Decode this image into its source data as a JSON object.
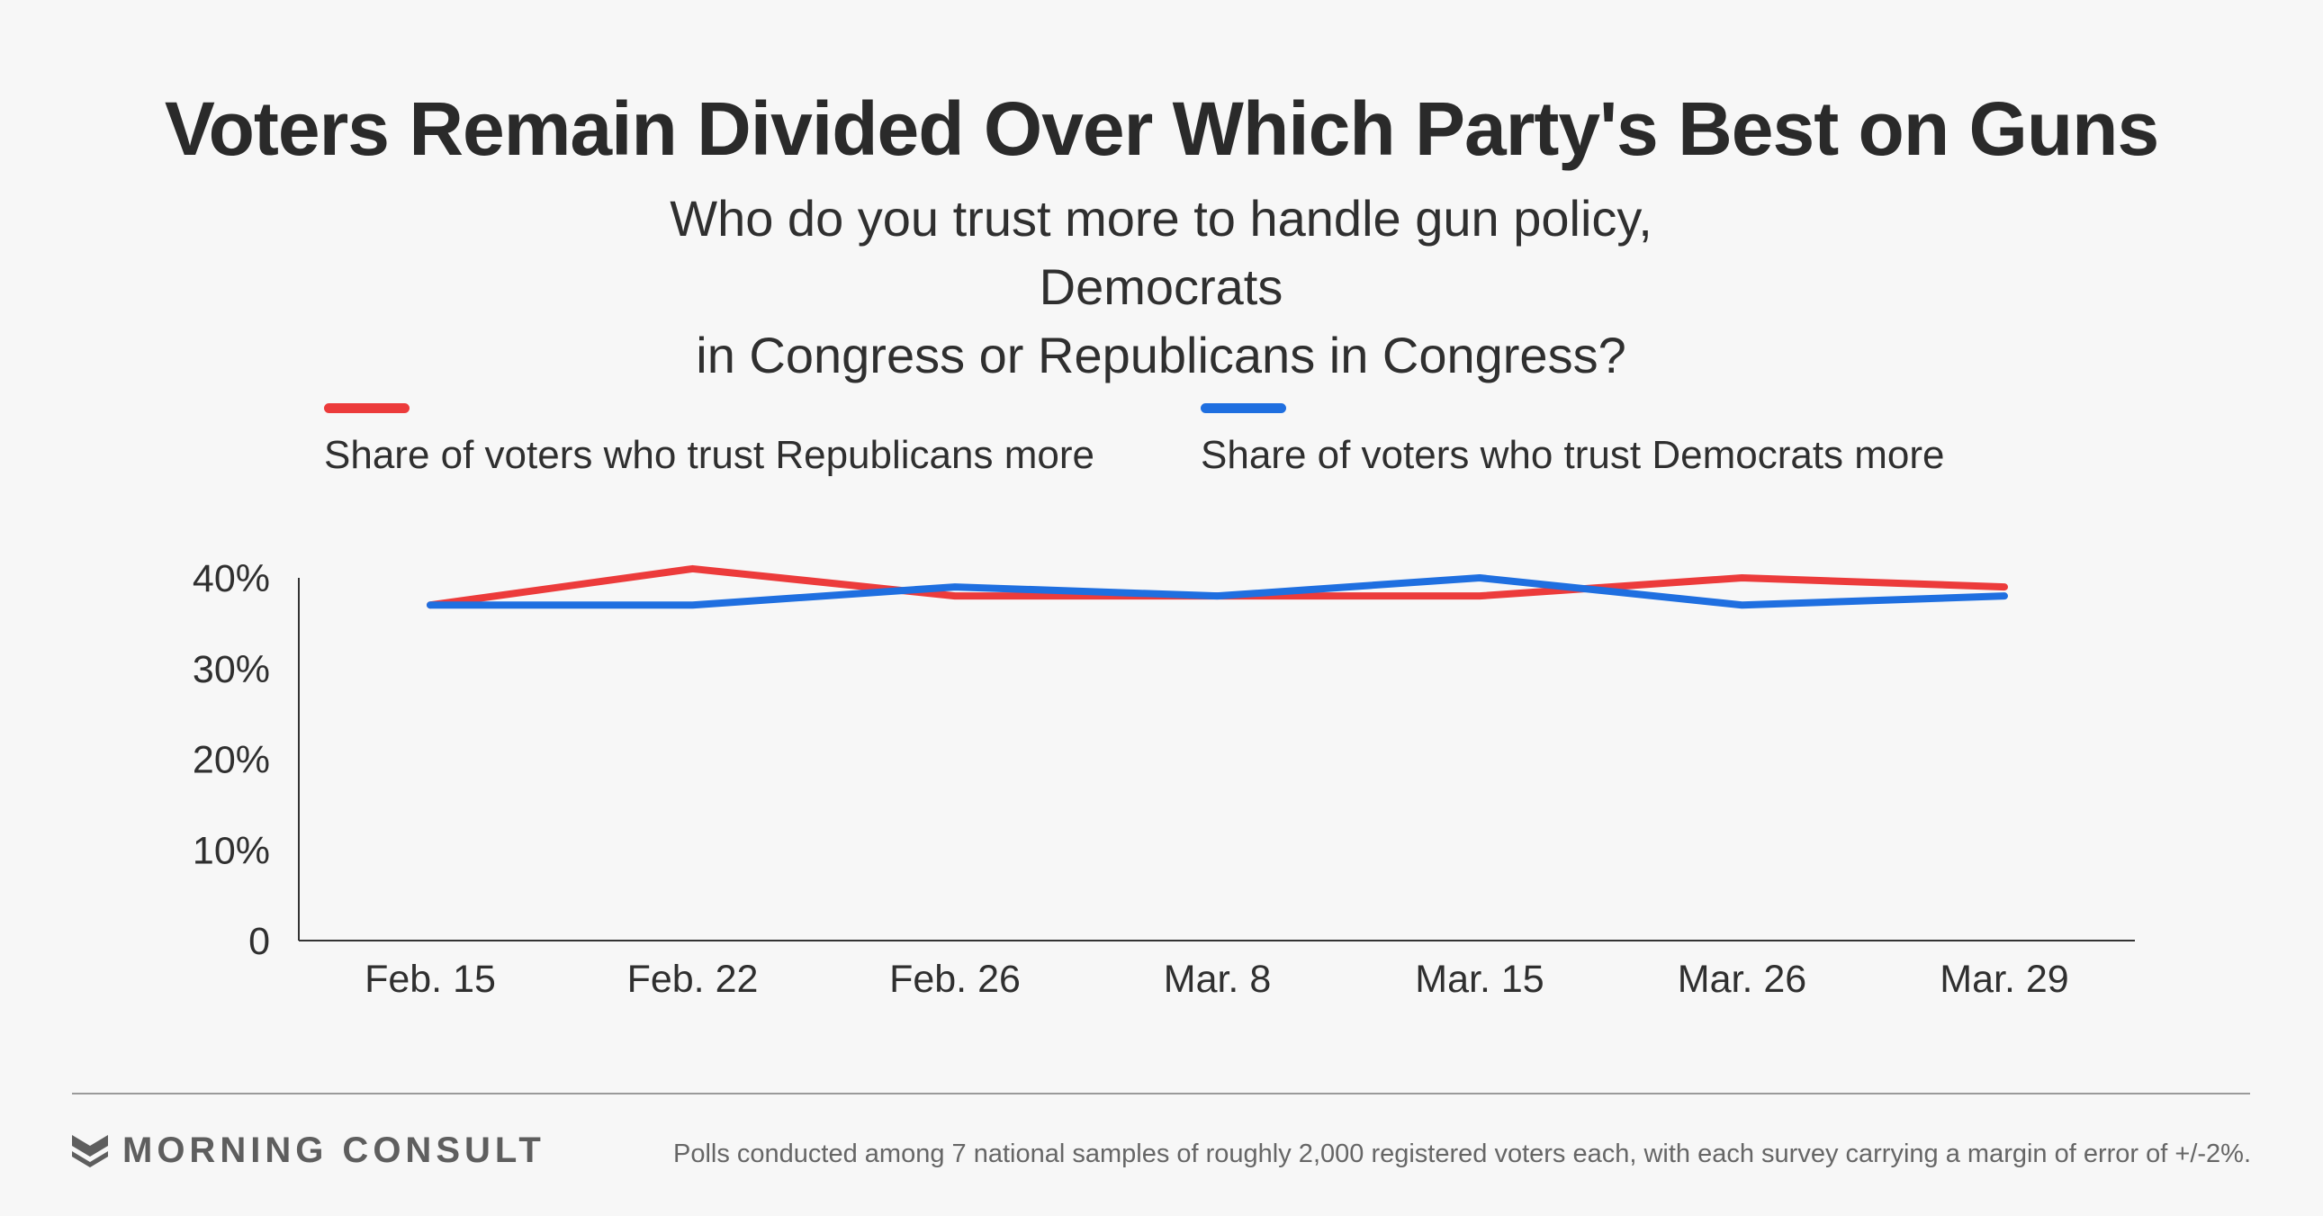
{
  "header": {
    "title": "Voters Remain Divided Over Which Party's Best on Guns",
    "subtitle_line1": "Who do you trust more to handle gun policy, Democrats",
    "subtitle_line2": "in Congress or Republicans in Congress?"
  },
  "legend": [
    {
      "label": "Share of voters who trust Republicans more",
      "color": "#ec3b3b"
    },
    {
      "label": "Share of voters who trust Democrats more",
      "color": "#1f6fe0"
    }
  ],
  "chart_data": {
    "type": "line",
    "title": "Voters Remain Divided Over Which Party's Best on Guns",
    "categories": [
      "Feb. 15",
      "Feb. 22",
      "Feb. 26",
      "Mar. 8",
      "Mar. 15",
      "Mar. 26",
      "Mar. 29"
    ],
    "y_ticks": [
      0,
      10,
      20,
      30,
      40
    ],
    "y_tick_labels": [
      "0",
      "10%",
      "20%",
      "30%",
      "40%"
    ],
    "ylim": [
      0,
      40
    ],
    "grid": false,
    "legend_position": "top",
    "series": [
      {
        "name": "Share of voters who trust Republicans more",
        "color": "#ec3b3b",
        "values": [
          37,
          41,
          38,
          38,
          38,
          40,
          39
        ]
      },
      {
        "name": "Share of voters who trust Democrats more",
        "color": "#1f6fe0",
        "values": [
          37,
          37,
          39,
          38,
          40,
          37,
          38
        ]
      }
    ]
  },
  "footer": {
    "brand": "MORNING CONSULT",
    "note": "Polls conducted among 7 national samples of roughly 2,000 registered voters each, with each survey carrying a margin of error of +/-2%."
  }
}
